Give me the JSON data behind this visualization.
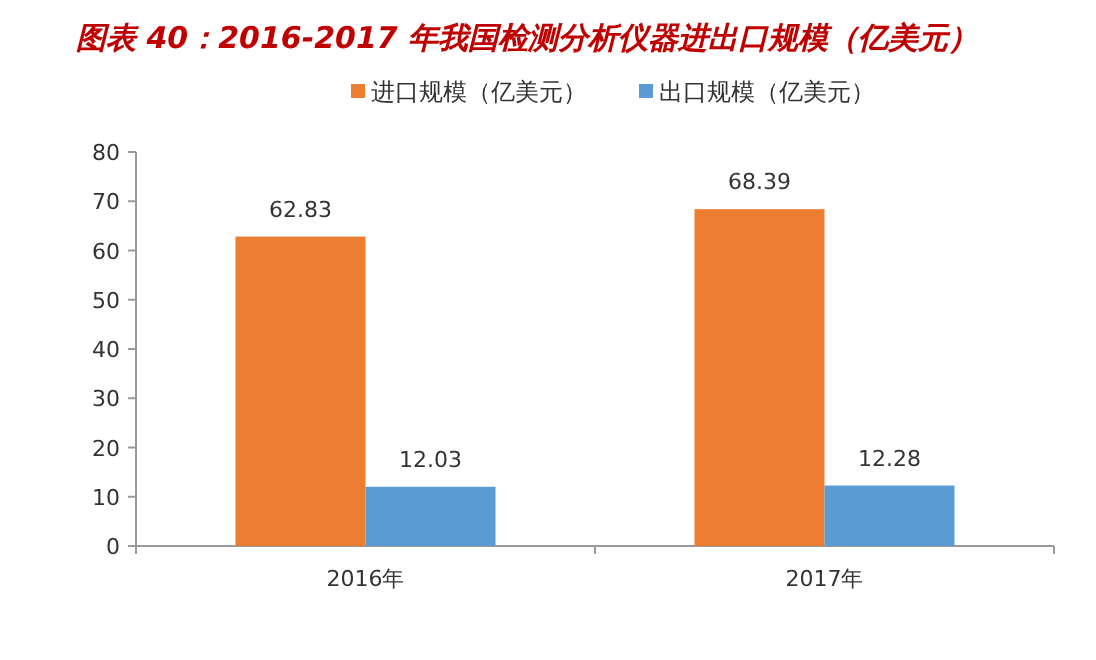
{
  "chart_data": {
    "type": "bar",
    "title": "图表 40：2016-2017 年我国检测分析仪器进出口规模（亿美元）",
    "categories": [
      "2016年",
      "2017年"
    ],
    "series": [
      {
        "name": "进口规模（亿美元）",
        "color": "#ed7d31",
        "values": [
          62.83,
          68.39
        ]
      },
      {
        "name": "出口规模（亿美元）",
        "color": "#5b9bd5",
        "values": [
          12.03,
          12.28
        ]
      }
    ],
    "ylim": [
      0,
      80
    ],
    "yticks": [
      0,
      10,
      20,
      30,
      40,
      50,
      60,
      70,
      80
    ],
    "data_labels": true,
    "legend": "top",
    "grid": false
  }
}
